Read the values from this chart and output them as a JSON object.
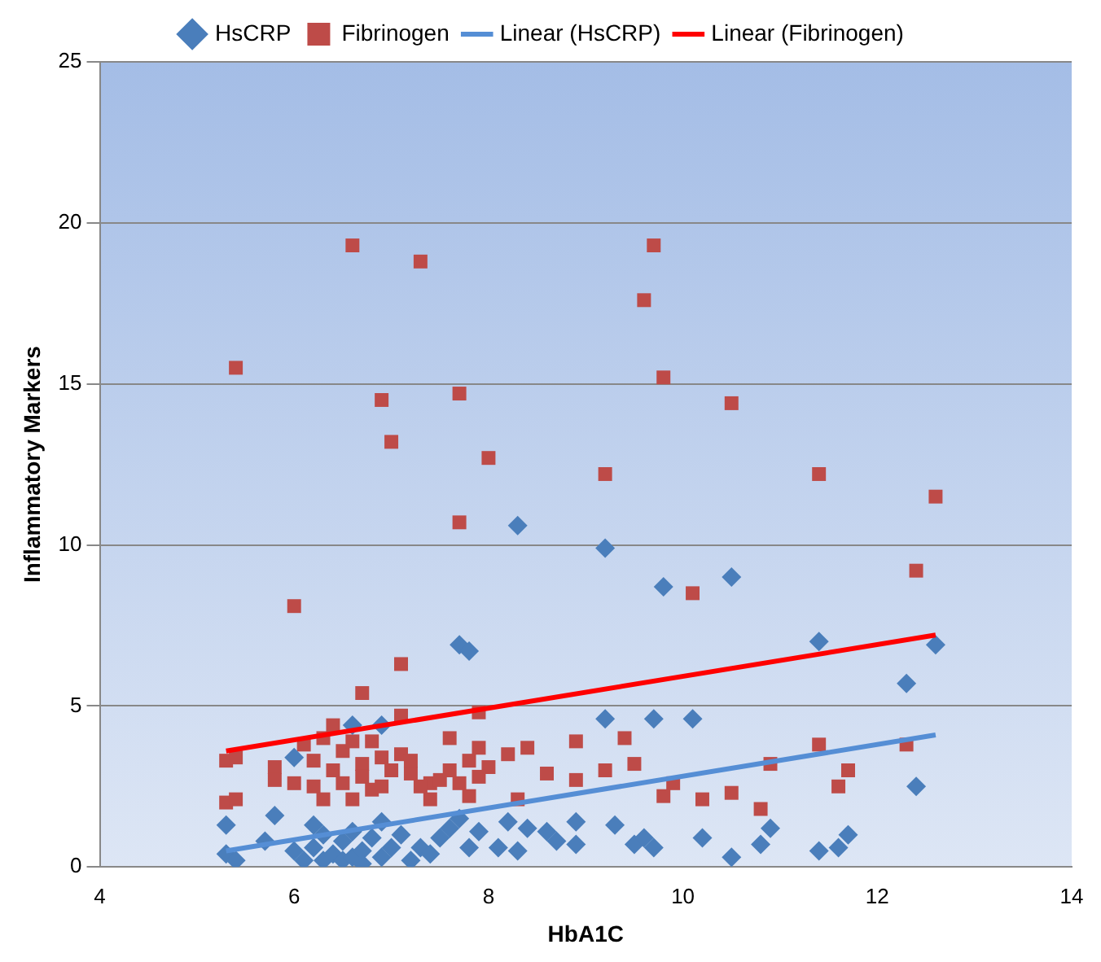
{
  "chart_data": {
    "type": "scatter",
    "xlabel": "HbA1C",
    "ylabel": "Inflammatory Markers",
    "xlim": [
      4,
      14
    ],
    "xticks": [
      4,
      6,
      8,
      10,
      12,
      14
    ],
    "ylim": [
      0,
      25
    ],
    "yticks": [
      0,
      5,
      10,
      15,
      20,
      25
    ],
    "grid": "y",
    "legend": "top",
    "series": [
      {
        "name": "HsCRP",
        "color": "#4a7ebb",
        "marker": "diamond",
        "x": [
          8.3,
          9.2,
          9.8,
          10.5,
          7.7,
          7.8,
          11.4,
          12.6,
          12.3,
          12.4,
          9.2,
          9.7,
          10.1,
          6.6,
          6.9,
          6.0,
          5.3,
          5.3,
          5.4,
          5.8,
          5.7,
          6.0,
          6.1,
          6.2,
          6.2,
          6.3,
          6.3,
          6.4,
          6.5,
          6.5,
          6.6,
          6.6,
          6.7,
          6.7,
          6.8,
          6.9,
          6.9,
          7.0,
          7.1,
          7.2,
          7.3,
          7.4,
          7.5,
          7.6,
          7.7,
          7.8,
          7.9,
          8.1,
          8.2,
          8.3,
          8.4,
          8.6,
          8.7,
          8.9,
          8.9,
          9.3,
          9.5,
          9.6,
          9.7,
          10.2,
          10.5,
          10.8,
          10.9,
          11.4,
          11.6,
          11.7
        ],
        "values": [
          10.6,
          9.9,
          8.7,
          9.0,
          6.9,
          6.7,
          7.0,
          6.9,
          5.7,
          2.5,
          4.6,
          4.6,
          4.6,
          4.4,
          4.4,
          3.4,
          1.3,
          0.4,
          0.2,
          1.6,
          0.8,
          0.5,
          0.2,
          1.3,
          0.6,
          0.2,
          1.0,
          0.4,
          0.2,
          0.8,
          1.1,
          0.3,
          0.5,
          0.1,
          0.9,
          1.4,
          0.3,
          0.6,
          1.0,
          0.2,
          0.6,
          0.4,
          0.9,
          1.2,
          1.5,
          0.6,
          1.1,
          0.6,
          1.4,
          0.5,
          1.2,
          1.1,
          0.8,
          0.7,
          1.4,
          1.3,
          0.7,
          0.9,
          0.6,
          0.9,
          0.3,
          0.7,
          1.2,
          0.5,
          0.6,
          1.0
        ]
      },
      {
        "name": "Fibrinogen",
        "color": "#be4b48",
        "marker": "square",
        "x": [
          5.4,
          6.0,
          6.6,
          7.3,
          6.9,
          7.0,
          7.7,
          7.7,
          8.0,
          9.6,
          9.7,
          9.8,
          9.2,
          10.5,
          10.1,
          11.4,
          12.6,
          12.4,
          6.7,
          7.1,
          7.1,
          7.9,
          12.3,
          11.4,
          11.7,
          11.6,
          10.9,
          10.8,
          10.5,
          10.2,
          9.9,
          9.8,
          9.5,
          9.4,
          9.2,
          8.9,
          8.9,
          8.6,
          8.4,
          8.3,
          8.2,
          8.0,
          7.9,
          7.8,
          5.3,
          5.4,
          5.3,
          5.4,
          5.8,
          5.8,
          6.0,
          6.1,
          6.2,
          6.2,
          6.3,
          6.3,
          6.4,
          6.4,
          6.5,
          6.5,
          6.6,
          6.6,
          6.7,
          6.7,
          6.8,
          6.8,
          6.9,
          6.9,
          7.0,
          7.1,
          7.2,
          7.2,
          7.4,
          7.4,
          7.5,
          7.6,
          7.6,
          7.7,
          7.8,
          7.9,
          7.3
        ],
        "values": [
          15.5,
          8.1,
          19.3,
          18.8,
          14.5,
          13.2,
          14.7,
          10.7,
          12.7,
          17.6,
          19.3,
          15.2,
          12.2,
          14.4,
          8.5,
          12.2,
          11.5,
          9.2,
          5.4,
          6.3,
          4.7,
          4.8,
          3.8,
          3.8,
          3.0,
          2.5,
          3.2,
          1.8,
          2.3,
          2.1,
          2.6,
          2.2,
          3.2,
          4.0,
          3.0,
          3.9,
          2.7,
          2.9,
          3.7,
          2.1,
          3.5,
          3.1,
          3.7,
          2.2,
          3.3,
          3.4,
          2.0,
          2.1,
          3.1,
          2.7,
          2.6,
          3.8,
          3.3,
          2.5,
          2.1,
          4.0,
          4.4,
          3.0,
          3.6,
          2.6,
          2.1,
          3.9,
          3.2,
          2.8,
          3.9,
          2.4,
          3.4,
          2.5,
          3.0,
          3.5,
          2.9,
          3.3,
          2.6,
          2.1,
          2.7,
          4.0,
          3.0,
          2.6,
          3.3,
          2.8,
          2.5
        ]
      },
      {
        "name": "Linear (HsCRP)",
        "type": "line",
        "color": "#558ed5",
        "marker": "none",
        "x": [
          5.3,
          12.6
        ],
        "values": [
          0.5,
          4.1
        ]
      },
      {
        "name": "Linear (Fibrinogen)",
        "type": "line",
        "color": "#ff0000",
        "marker": "none",
        "x": [
          5.3,
          12.6
        ],
        "values": [
          3.6,
          7.2
        ]
      }
    ]
  }
}
